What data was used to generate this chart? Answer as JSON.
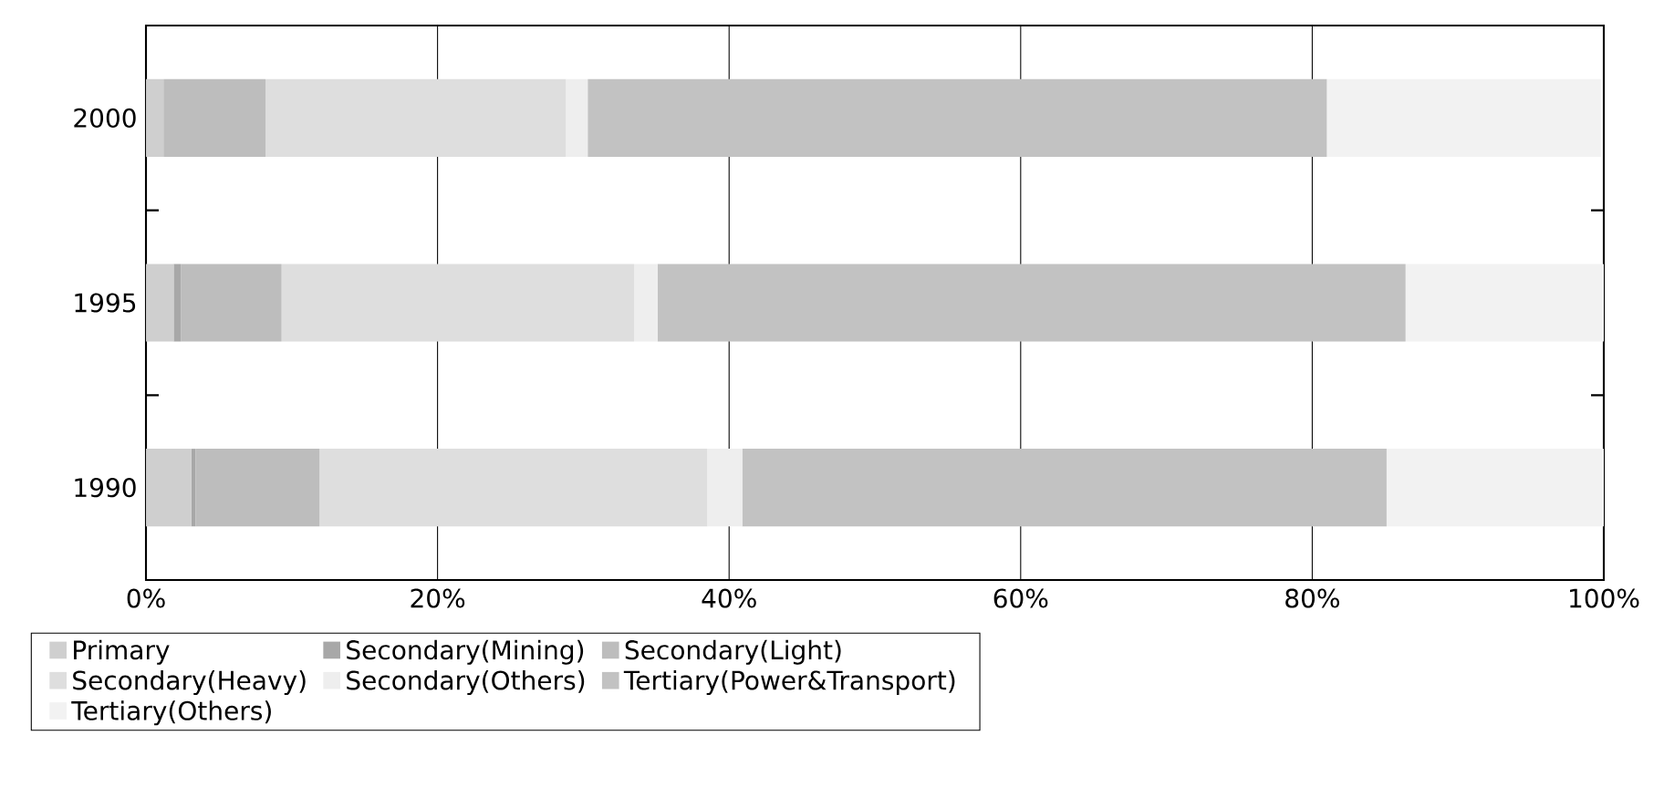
{
  "chart_data": {
    "type": "bar",
    "orientation": "horizontal",
    "stacked": true,
    "categories": [
      "2000",
      "1995",
      "1990"
    ],
    "series": [
      {
        "name": "Primary",
        "color": "#cfcfcf",
        "values": [
          1.2,
          1.9,
          3.1
        ]
      },
      {
        "name": "Secondary(Mining)",
        "color": "#a8a8a8",
        "values": [
          null,
          0.5,
          0.3
        ]
      },
      {
        "name": "Secondary(Light)",
        "color": "#bdbdbd",
        "values": [
          7.0,
          6.9,
          8.5
        ]
      },
      {
        "name": "Secondary(Heavy)",
        "color": "#dedede",
        "values": [
          20.6,
          24.2,
          26.6
        ]
      },
      {
        "name": "Secondary(Others)",
        "color": "#eeeeee",
        "values": [
          1.5,
          1.6,
          2.4
        ]
      },
      {
        "name": "Tertiary(Power&Transport)",
        "color": "#c2c2c2",
        "values": [
          50.7,
          51.3,
          44.2
        ]
      },
      {
        "name": "Tertiary(Others)",
        "color": "#f2f2f2",
        "values": [
          18.8,
          13.6,
          14.9
        ]
      }
    ],
    "xlim": [
      0,
      100
    ],
    "xticks": [
      {
        "value": 0,
        "label": "0%"
      },
      {
        "value": 20,
        "label": "20%"
      },
      {
        "value": 40,
        "label": "40%"
      },
      {
        "value": 60,
        "label": "60%"
      },
      {
        "value": 80,
        "label": "80%"
      },
      {
        "value": 100,
        "label": "100%"
      }
    ],
    "grid": "x",
    "legend": "bottom"
  }
}
